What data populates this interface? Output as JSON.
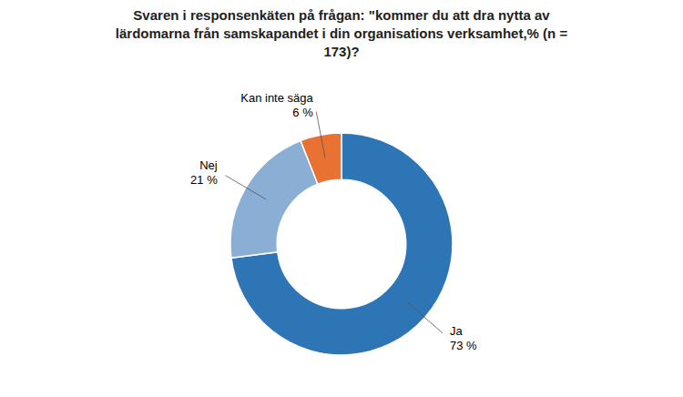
{
  "chart_data": {
    "type": "pie",
    "title": "Svaren i responsenkäten på frågan: \"kommer du att dra nytta av\nlärdomarna från samskapandet i din organisations verksamhet,% (n =\n173)?",
    "categories": [
      "Ja",
      "Nej",
      "Kan inte säga"
    ],
    "values": [
      73,
      21,
      6
    ],
    "value_labels": [
      "73 %",
      "21 %",
      "6 %"
    ],
    "colors": [
      "#2E75B6",
      "#8BAFD4",
      "#E97132"
    ],
    "data_labels": true
  }
}
